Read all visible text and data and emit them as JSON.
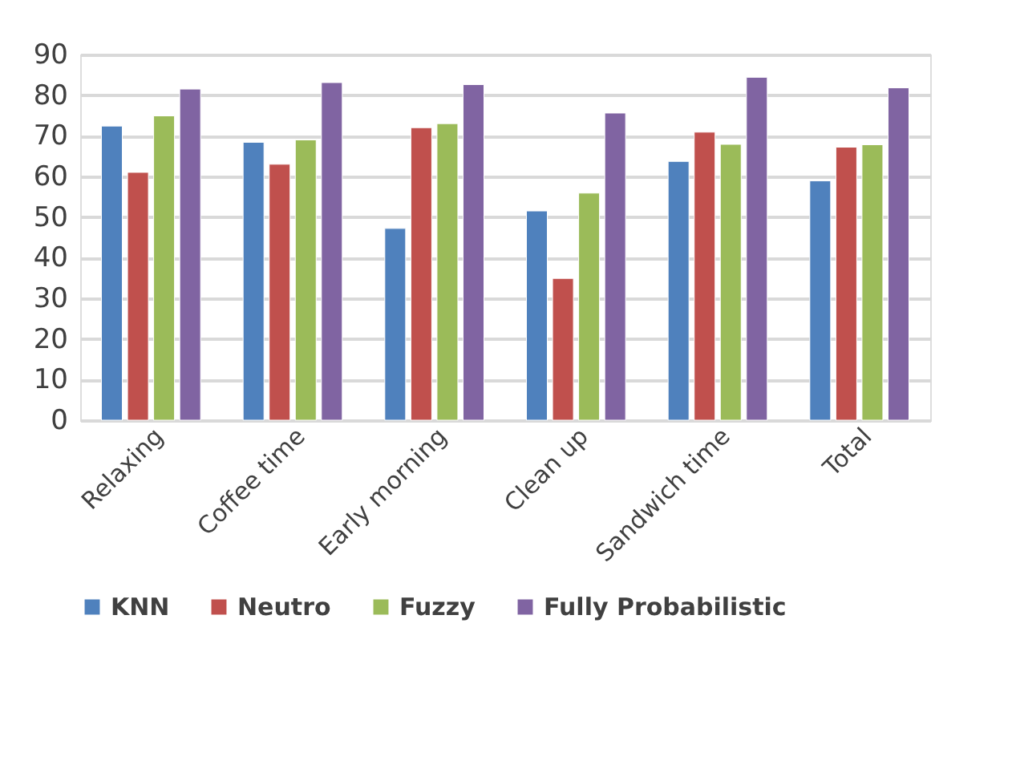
{
  "chart_data": {
    "type": "bar",
    "categories": [
      "Relaxing",
      "Coffee time",
      "Early morning",
      "Clean up",
      "Sandwich time",
      "Total"
    ],
    "series": [
      {
        "name": "KNN",
        "color": "#4f81bd",
        "values": [
          72.4,
          68.4,
          47.2,
          51.5,
          63.7,
          58.9
        ]
      },
      {
        "name": "Neutro",
        "color": "#c0504d",
        "values": [
          61,
          63,
          72,
          34.9,
          70.9,
          67.2
        ]
      },
      {
        "name": "Fuzzy",
        "color": "#9bbb59",
        "values": [
          74.9,
          69,
          73,
          55.9,
          67.9,
          67.8
        ]
      },
      {
        "name": "Fully Probabilistic",
        "color": "#8064a2",
        "values": [
          81.5,
          83.1,
          82.6,
          75.6,
          84.4,
          81.8
        ]
      }
    ],
    "ylim": [
      0,
      90
    ],
    "yticks": [
      0,
      10,
      20,
      30,
      40,
      50,
      60,
      70,
      80,
      90
    ],
    "grid": "y",
    "legend": "bottom"
  }
}
